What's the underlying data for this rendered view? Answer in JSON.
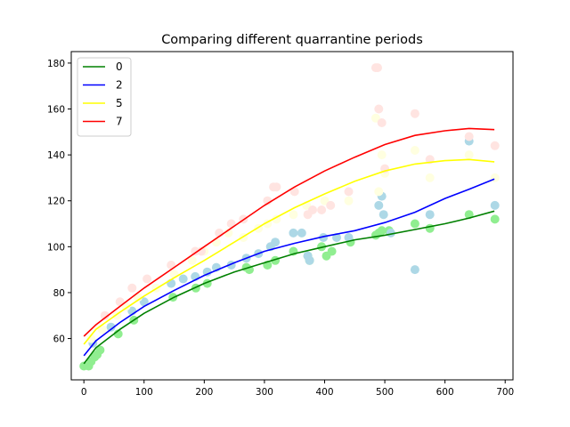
{
  "chart_data": {
    "type": "line",
    "title": "Comparing different quarrantine periods",
    "xlabel": "",
    "ylabel": "",
    "xlim": [
      -21,
      713
    ],
    "ylim": [
      42,
      185
    ],
    "xticks": [
      0,
      100,
      200,
      300,
      400,
      500,
      600,
      700
    ],
    "yticks": [
      60,
      80,
      100,
      120,
      140,
      160,
      180
    ],
    "grid": false,
    "legend_position": "top-left",
    "series": [
      {
        "name": "0",
        "color": "#008000",
        "point_color": "#90ee90",
        "x": [
          0,
          20,
          60,
          100,
          150,
          200,
          250,
          300,
          350,
          400,
          450,
          500,
          550,
          600,
          640,
          682
        ],
        "y": [
          49,
          56,
          64,
          71,
          78,
          84,
          89,
          93,
          97,
          100,
          103,
          105,
          107.5,
          110,
          112.5,
          115.5
        ],
        "points": [
          [
            0,
            48
          ],
          [
            8,
            48
          ],
          [
            12,
            50
          ],
          [
            18,
            52
          ],
          [
            22,
            53
          ],
          [
            27,
            55
          ],
          [
            57,
            62
          ],
          [
            83,
            68
          ],
          [
            148,
            78
          ],
          [
            186,
            82
          ],
          [
            205,
            84
          ],
          [
            270,
            91
          ],
          [
            275,
            90
          ],
          [
            305,
            92
          ],
          [
            318,
            94
          ],
          [
            348,
            98
          ],
          [
            372,
            96
          ],
          [
            375,
            94
          ],
          [
            395,
            100
          ],
          [
            403,
            96
          ],
          [
            412,
            98
          ],
          [
            443,
            102
          ],
          [
            485,
            105
          ],
          [
            490,
            106
          ],
          [
            495,
            107
          ],
          [
            507,
            107
          ],
          [
            550,
            110
          ],
          [
            575,
            108
          ],
          [
            640,
            114
          ],
          [
            683,
            112
          ]
        ]
      },
      {
        "name": "2",
        "color": "#0000ff",
        "point_color": "#add8e6",
        "x": [
          0,
          20,
          60,
          100,
          150,
          200,
          250,
          300,
          350,
          400,
          450,
          500,
          550,
          600,
          640,
          682
        ],
        "y": [
          52.5,
          59,
          67,
          74,
          81,
          87.5,
          93,
          98,
          101.5,
          104.5,
          107,
          110.5,
          115,
          121,
          125,
          129.5
        ],
        "points": [
          [
            15,
            58
          ],
          [
            45,
            65
          ],
          [
            80,
            72
          ],
          [
            100,
            76
          ],
          [
            145,
            84
          ],
          [
            165,
            86
          ],
          [
            185,
            87
          ],
          [
            205,
            89
          ],
          [
            220,
            91
          ],
          [
            245,
            92
          ],
          [
            270,
            95
          ],
          [
            290,
            97
          ],
          [
            310,
            100
          ],
          [
            318,
            102
          ],
          [
            348,
            106
          ],
          [
            362,
            106
          ],
          [
            372,
            96
          ],
          [
            375,
            94
          ],
          [
            398,
            104
          ],
          [
            420,
            104
          ],
          [
            440,
            104
          ],
          [
            490,
            118
          ],
          [
            495,
            122
          ],
          [
            498,
            114
          ],
          [
            510,
            106
          ],
          [
            550,
            90
          ],
          [
            575,
            114
          ],
          [
            640,
            146
          ],
          [
            683,
            118
          ]
        ]
      },
      {
        "name": "5",
        "color": "#ffff00",
        "point_color": "#ffffe0",
        "x": [
          0,
          20,
          60,
          100,
          150,
          200,
          250,
          300,
          350,
          400,
          450,
          500,
          550,
          600,
          640,
          682
        ],
        "y": [
          57.5,
          64,
          71.5,
          78.5,
          86.5,
          94,
          102,
          110,
          117,
          123,
          128.5,
          133,
          136,
          137.5,
          138,
          137
        ],
        "points": [
          [
            12,
            60
          ],
          [
            30,
            64
          ],
          [
            55,
            70
          ],
          [
            70,
            74
          ],
          [
            90,
            78
          ],
          [
            120,
            82
          ],
          [
            150,
            88
          ],
          [
            180,
            94
          ],
          [
            200,
            98
          ],
          [
            220,
            102
          ],
          [
            240,
            106
          ],
          [
            265,
            104
          ],
          [
            290,
            108
          ],
          [
            305,
            110
          ],
          [
            320,
            112
          ],
          [
            348,
            114
          ],
          [
            370,
            118
          ],
          [
            400,
            120
          ],
          [
            440,
            120
          ],
          [
            485,
            156
          ],
          [
            490,
            124
          ],
          [
            495,
            140
          ],
          [
            500,
            132
          ],
          [
            550,
            142
          ],
          [
            575,
            130
          ],
          [
            640,
            140
          ],
          [
            683,
            130
          ]
        ]
      },
      {
        "name": "7",
        "color": "#ff0000",
        "point_color": "#ffe4e1",
        "x": [
          0,
          20,
          60,
          100,
          150,
          200,
          250,
          300,
          350,
          400,
          450,
          500,
          550,
          600,
          640,
          682
        ],
        "y": [
          61,
          66,
          74,
          82,
          91,
          100,
          109,
          118,
          126,
          133,
          139,
          144.5,
          148.5,
          150.5,
          151.5,
          151
        ],
        "points": [
          [
            35,
            70
          ],
          [
            60,
            76
          ],
          [
            80,
            82
          ],
          [
            105,
            86
          ],
          [
            145,
            92
          ],
          [
            185,
            98
          ],
          [
            195,
            98
          ],
          [
            225,
            106
          ],
          [
            245,
            110
          ],
          [
            265,
            112
          ],
          [
            305,
            120
          ],
          [
            315,
            126
          ],
          [
            320,
            126
          ],
          [
            350,
            124
          ],
          [
            372,
            114
          ],
          [
            380,
            116
          ],
          [
            395,
            116
          ],
          [
            410,
            118
          ],
          [
            440,
            124
          ],
          [
            485,
            178
          ],
          [
            488,
            178
          ],
          [
            490,
            160
          ],
          [
            495,
            154
          ],
          [
            500,
            134
          ],
          [
            550,
            158
          ],
          [
            575,
            138
          ],
          [
            640,
            148
          ],
          [
            683,
            144
          ]
        ]
      }
    ]
  }
}
